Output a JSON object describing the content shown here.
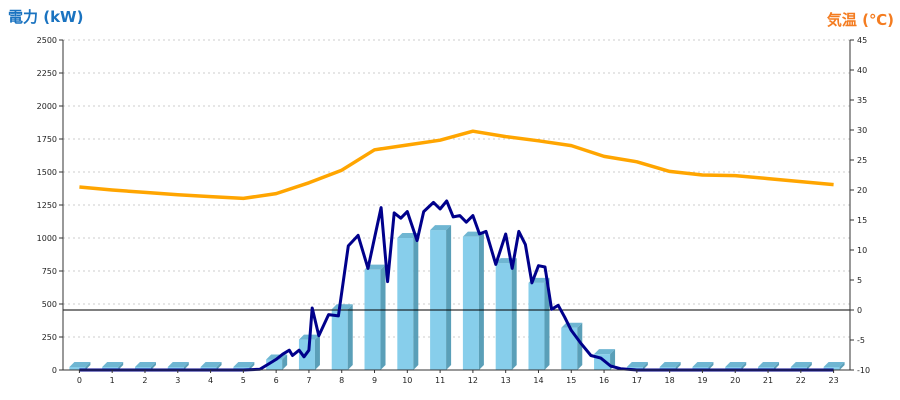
{
  "chart_data": {
    "type": "bar",
    "y_left_title": "電力 (kW)",
    "y_right_title": "気温 (℃)",
    "categories": [
      "0",
      "1",
      "2",
      "3",
      "4",
      "5",
      "6",
      "7",
      "8",
      "9",
      "10",
      "11",
      "12",
      "13",
      "14",
      "15",
      "16",
      "17",
      "18",
      "19",
      "20",
      "21",
      "22",
      "23"
    ],
    "ylim_left": [
      0,
      2500
    ],
    "ylim_right": [
      -10,
      45
    ],
    "y_left_ticks": [
      "0",
      "250",
      "500",
      "750",
      "1000",
      "1250",
      "1500",
      "1750",
      "2000",
      "2250",
      "2500"
    ],
    "y_right_ticks": [
      "-10",
      "-5",
      "0",
      "5",
      "10",
      "15",
      "20",
      "25",
      "30",
      "35",
      "40",
      "45"
    ],
    "grid": true,
    "series": [
      {
        "kind": "bar",
        "axis": "left",
        "color": "#87ceeb",
        "values": [
          0,
          0,
          0,
          0,
          0,
          0,
          80,
          230,
          460,
          760,
          1000,
          1060,
          1010,
          810,
          660,
          320,
          120,
          0,
          0,
          0,
          0,
          0,
          0,
          0
        ]
      },
      {
        "kind": "line",
        "axis": "left",
        "color": "#00008b",
        "x": [
          0,
          1,
          2,
          3,
          4,
          5,
          5.5,
          5.8,
          6,
          6.2,
          6.4,
          6.5,
          6.7,
          6.85,
          7,
          7.1,
          7.3,
          7.6,
          7.9,
          8.2,
          8.5,
          8.8,
          9,
          9.2,
          9.4,
          9.6,
          9.8,
          10,
          10.3,
          10.5,
          10.8,
          11,
          11.2,
          11.4,
          11.6,
          11.8,
          12,
          12.2,
          12.4,
          12.7,
          13,
          13.2,
          13.4,
          13.6,
          13.8,
          14,
          14.2,
          14.4,
          14.6,
          14.8,
          15,
          15.3,
          15.6,
          15.9,
          16.2,
          16.5,
          17,
          18,
          19,
          20,
          21,
          22,
          23
        ],
        "values": [
          0,
          0,
          0,
          0,
          0,
          0,
          5,
          50,
          80,
          120,
          150,
          110,
          150,
          100,
          150,
          470,
          260,
          420,
          410,
          940,
          1020,
          770,
          1000,
          1230,
          670,
          1190,
          1150,
          1200,
          980,
          1200,
          1270,
          1220,
          1280,
          1160,
          1170,
          1120,
          1170,
          1030,
          1050,
          800,
          1030,
          770,
          1050,
          950,
          660,
          790,
          780,
          460,
          490,
          400,
          300,
          200,
          110,
          90,
          30,
          10,
          0,
          0,
          0,
          0,
          0,
          0,
          0
        ]
      },
      {
        "kind": "line",
        "axis": "right",
        "color": "#ffa500",
        "values": [
          20.5,
          20.0,
          19.6,
          19.2,
          18.9,
          18.6,
          19.4,
          21.2,
          23.3,
          26.7,
          27.5,
          28.3,
          29.8,
          28.9,
          28.2,
          27.4,
          25.6,
          24.7,
          23.1,
          22.5,
          22.4,
          21.9,
          21.4,
          20.9
        ]
      }
    ],
    "reference_line": {
      "axis": "right",
      "value": 0,
      "color": "#000000"
    },
    "colors": {
      "left_title": "#1a73c0",
      "right_title": "#f47c20"
    }
  }
}
